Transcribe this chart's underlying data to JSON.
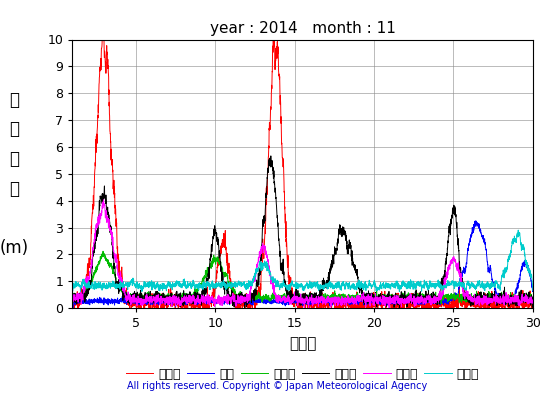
{
  "title": "year : 2014   month : 11",
  "xlabel": "（日）",
  "ylabel_chars": [
    "有",
    "義",
    "波",
    "高",
    "",
    "(m)"
  ],
  "xlim": [
    1,
    30
  ],
  "ylim": [
    0,
    10
  ],
  "yticks": [
    0,
    1,
    2,
    3,
    4,
    5,
    6,
    7,
    8,
    9,
    10
  ],
  "xticks": [
    5,
    10,
    15,
    20,
    25,
    30
  ],
  "series_order": [
    "上ノ国",
    "唐桑",
    "石廀崎",
    "経ヶ尬",
    "生月島",
    "屋久島"
  ],
  "series_colors": [
    "#ff0000",
    "#0000ff",
    "#00bb00",
    "#000000",
    "#ff00ff",
    "#00cccc"
  ],
  "copyright": "All rights reserved. Copyright © Japan Meteorological Agency",
  "copyright_color": "#0000cc",
  "background_color": "#ffffff",
  "grid_color": "#888888"
}
